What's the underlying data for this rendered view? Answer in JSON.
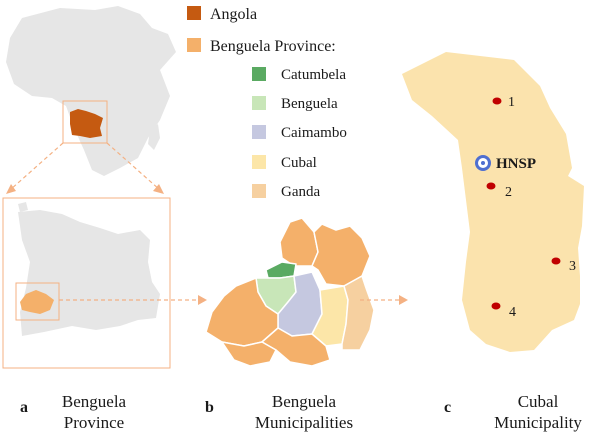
{
  "colors": {
    "angola": "#c55a11",
    "benguela_province": "#f4b06a",
    "catumbela": "#5aaa62",
    "benguela": "#c8e6b8",
    "caimambo": "#c5c8e0",
    "cubal": "#fce6a8",
    "ganda": "#f6d0a0",
    "land_gray": "#e6e6e6",
    "cubal_fill": "#fbe3ad",
    "site_dot": "#c00000",
    "hnsp_ring": "#4f6fd0",
    "arrow": "#f4b183"
  },
  "legend": {
    "angola": "Angola",
    "benguela_province": "Benguela Province:",
    "items": [
      {
        "label": "Catumbela",
        "color_key": "catumbela"
      },
      {
        "label": "Benguela",
        "color_key": "benguela"
      },
      {
        "label": "Caimambo",
        "color_key": "caimambo"
      },
      {
        "label": "Cubal",
        "color_key": "cubal"
      },
      {
        "label": "Ganda",
        "color_key": "ganda"
      }
    ]
  },
  "map_c": {
    "hnsp_label": "HNSP",
    "sites": [
      "1",
      "2",
      "3",
      "4"
    ]
  },
  "panels": [
    {
      "letter": "a",
      "line1": "Benguela",
      "line2": "Province"
    },
    {
      "letter": "b",
      "line1": "Benguela",
      "line2": "Municipalities"
    },
    {
      "letter": "c",
      "line1": "Cubal",
      "line2": "Municipality"
    }
  ]
}
